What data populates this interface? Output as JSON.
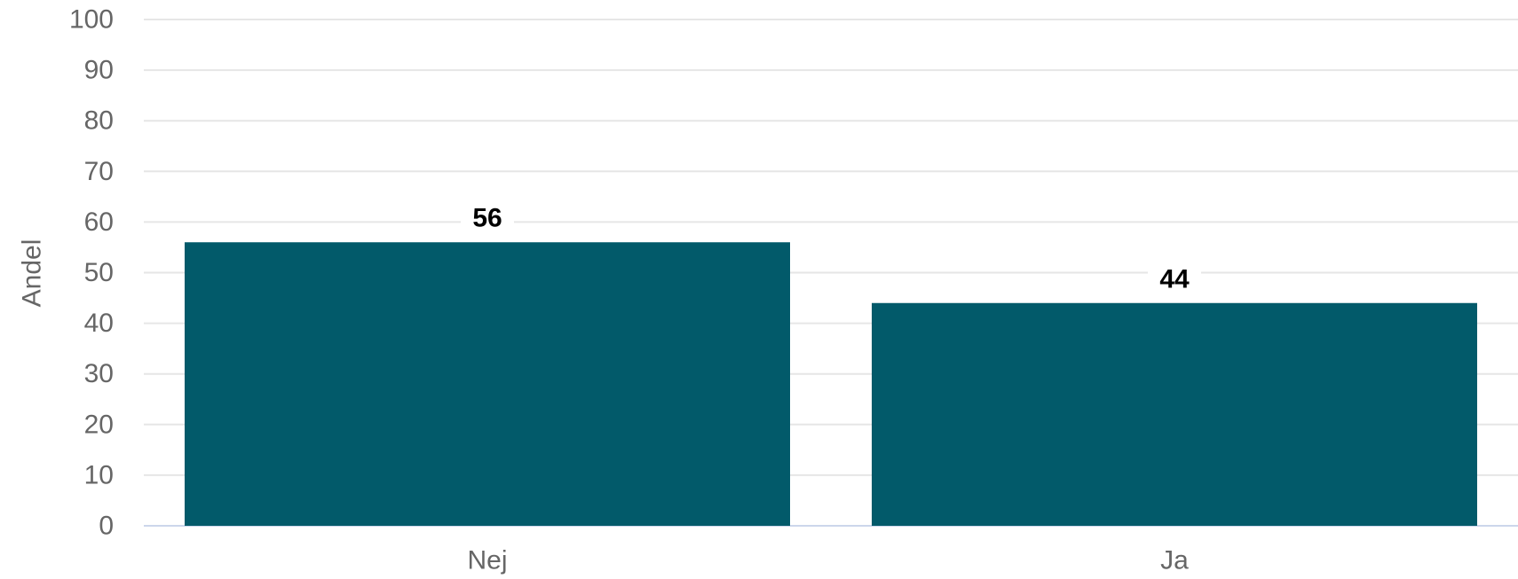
{
  "chart_data": {
    "type": "bar",
    "categories": [
      "Nej",
      "Ja"
    ],
    "values": [
      56,
      44
    ],
    "data_labels": [
      "56",
      "44"
    ],
    "ylabel": "Andel",
    "xlabel": "",
    "ylim": [
      0,
      100
    ],
    "yticks": [
      0,
      10,
      20,
      30,
      40,
      50,
      60,
      70,
      80,
      90,
      100
    ],
    "ytick_labels": [
      "0",
      "10",
      "20",
      "30",
      "40",
      "50",
      "60",
      "70",
      "80",
      "90",
      "100"
    ],
    "grid": true,
    "legend": "none",
    "colors": {
      "bar": "#025a6a",
      "grid": "#e6e6e6",
      "axis": "#ccd6eb",
      "label": "#666666"
    }
  }
}
